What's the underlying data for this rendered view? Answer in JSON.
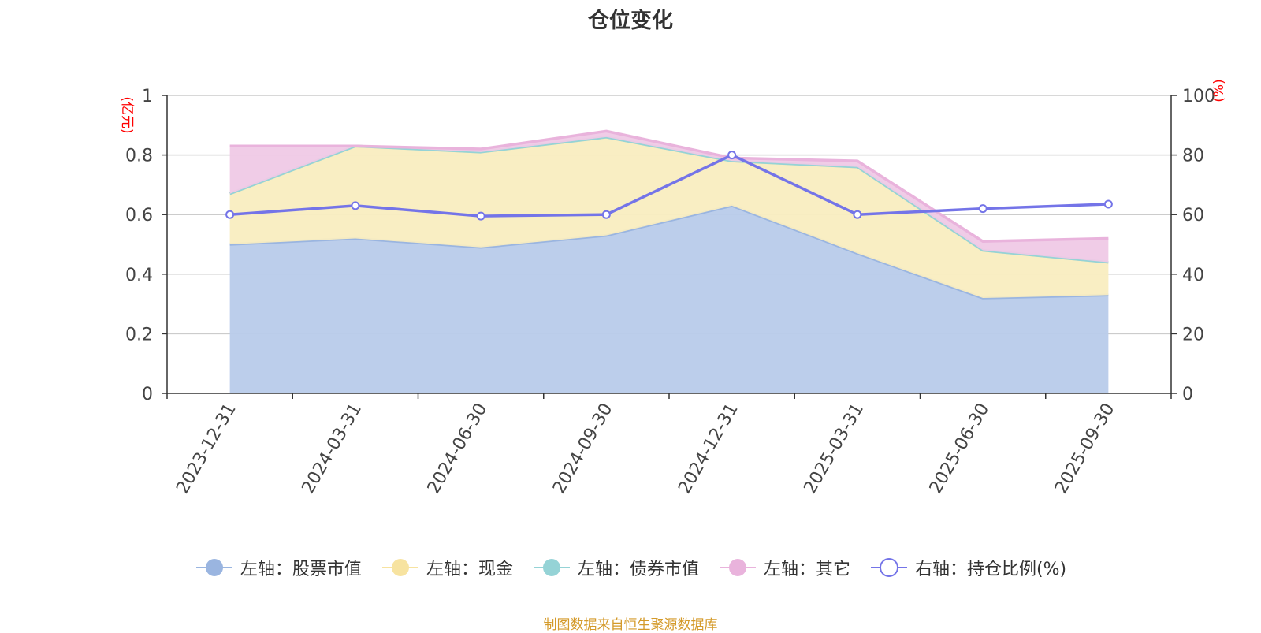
{
  "title": "仓位变化",
  "source_note": "制图数据来自恒生聚源数据库",
  "legend": [
    {
      "label": "左轴：股票市值",
      "color": "#9ab5e0",
      "icon": "filled-circle-icon"
    },
    {
      "label": "左轴：现金",
      "color": "#f7e3a0",
      "icon": "filled-circle-icon"
    },
    {
      "label": "左轴：债券市值",
      "color": "#95d3d6",
      "icon": "filled-circle-icon"
    },
    {
      "label": "左轴：其它",
      "color": "#e9b3dc",
      "icon": "filled-circle-icon"
    },
    {
      "label": "右轴：持仓比例(%)",
      "color": "#7474e8",
      "icon": "hollow-circle-icon"
    }
  ],
  "chart_data": {
    "type": "area",
    "title": "仓位变化",
    "categories": [
      "2023-12-31",
      "2024-03-31",
      "2024-06-30",
      "2024-09-30",
      "2024-12-31",
      "2025-03-31",
      "2025-06-30",
      "2025-09-30"
    ],
    "left_axis": {
      "unit": "(亿元)",
      "ylim": [
        0,
        1
      ],
      "ticks": [
        "0",
        "0.2",
        "0.4",
        "0.6",
        "0.8",
        "1"
      ],
      "unit_color": "#ff0000"
    },
    "right_axis": {
      "unit": "(%)",
      "ylim": [
        0,
        100
      ],
      "ticks": [
        "0",
        "20",
        "40",
        "60",
        "80",
        "100"
      ],
      "unit_color": "#ff0000"
    },
    "stacked_series": [
      {
        "name": "左轴：股票市值",
        "axis": "left",
        "color": "#9ab5e0",
        "fill": "#b8cbea",
        "values": [
          0.5,
          0.52,
          0.49,
          0.53,
          0.63,
          0.47,
          0.32,
          0.33
        ]
      },
      {
        "name": "左轴：现金",
        "axis": "left",
        "color": "#f7e3a0",
        "fill": "#f9edc0",
        "values": [
          0.17,
          0.31,
          0.32,
          0.33,
          0.15,
          0.29,
          0.16,
          0.11
        ]
      },
      {
        "name": "左轴：债券市值",
        "axis": "left",
        "color": "#95d3d6",
        "fill": "#c0e5e7",
        "values": [
          0,
          0,
          0,
          0,
          0,
          0,
          0,
          0
        ]
      },
      {
        "name": "左轴：其它",
        "axis": "left",
        "color": "#e9b3dc",
        "fill": "#efc9e6",
        "values": [
          0.16,
          0,
          0.01,
          0.02,
          0.01,
          0.02,
          0.03,
          0.08
        ]
      }
    ],
    "line_series": [
      {
        "name": "右轴：持仓比例(%)",
        "axis": "right",
        "color": "#7474e8",
        "values": [
          60,
          63,
          59.5,
          60,
          80,
          60,
          62,
          63.5
        ]
      }
    ],
    "grid": true,
    "legend_position": "bottom"
  }
}
